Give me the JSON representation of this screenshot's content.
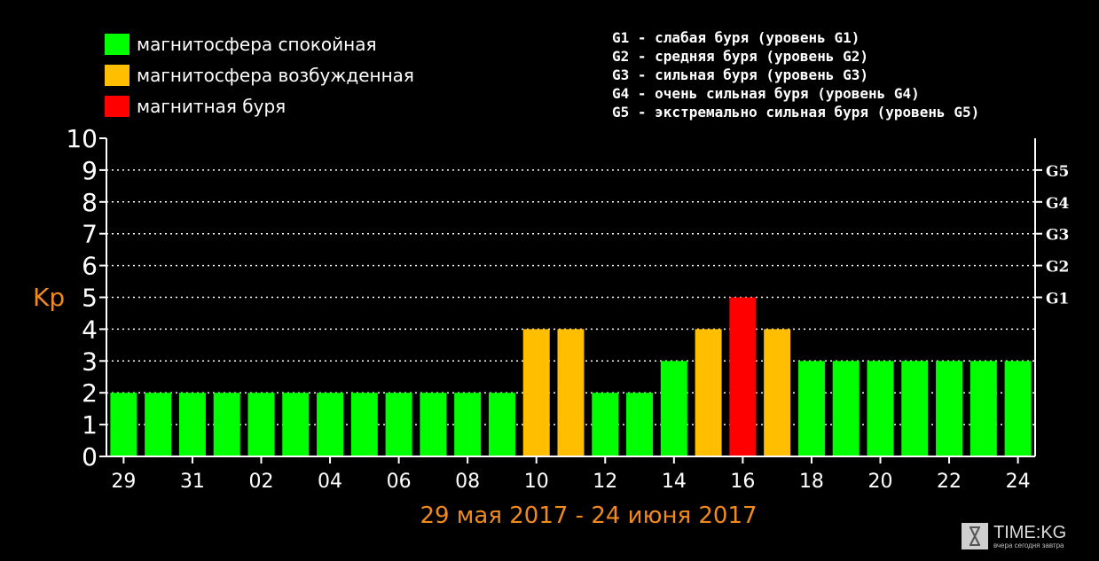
{
  "legend": [
    {
      "label": "магнитосфера спокойная",
      "color": "#00ff00"
    },
    {
      "label": "магнитосфера возбужденная",
      "color": "#ffbf00"
    },
    {
      "label": "магнитная буря",
      "color": "#ff0000"
    }
  ],
  "storm_levels": [
    "G1 - слабая буря (уровень G1)",
    "G2 - средняя буря (уровень G2)",
    "G3 - сильная буря (уровень G3)",
    "G4 - очень сильная буря (уровень G4)",
    "G5 - экстремально сильная буря (уровень G5)"
  ],
  "watermark": {
    "title": "TIME:KG",
    "subtitle": "вчера сегодня завтра",
    "icon": "hourglass-icon"
  },
  "chart_data": {
    "type": "bar",
    "ylabel": "Kp",
    "xlabel": "29 мая 2017 - 24 июня 2017",
    "ylim": [
      0,
      10
    ],
    "yticks": [
      "0",
      "1",
      "2",
      "3",
      "4",
      "5",
      "6",
      "7",
      "8",
      "9",
      "10"
    ],
    "right_ticks": [
      {
        "value": 5,
        "label": "G1"
      },
      {
        "value": 6,
        "label": "G2"
      },
      {
        "value": 7,
        "label": "G3"
      },
      {
        "value": 8,
        "label": "G4"
      },
      {
        "value": 9,
        "label": "G5"
      }
    ],
    "grid": "dotted horizontal",
    "categories": [
      "29",
      "30",
      "31",
      "01",
      "02",
      "03",
      "04",
      "05",
      "06",
      "07",
      "08",
      "09",
      "10",
      "11",
      "12",
      "13",
      "14",
      "15",
      "16",
      "17",
      "18",
      "19",
      "20",
      "21",
      "22",
      "23",
      "24"
    ],
    "xtick_labels": [
      "29",
      "31",
      "02",
      "04",
      "06",
      "08",
      "10",
      "12",
      "14",
      "16",
      "18",
      "20",
      "22",
      "24"
    ],
    "values": [
      2,
      2,
      2,
      2,
      2,
      2,
      2,
      2,
      2,
      2,
      2,
      2,
      4,
      4,
      2,
      2,
      3,
      4,
      5,
      4,
      3,
      3,
      3,
      3,
      3,
      3,
      3
    ],
    "colors": {
      "quiet": "#00ff00",
      "active": "#ffbf00",
      "storm": "#ff0000"
    },
    "axis_color": "#ffffff",
    "label_color": "#f08a1c"
  }
}
